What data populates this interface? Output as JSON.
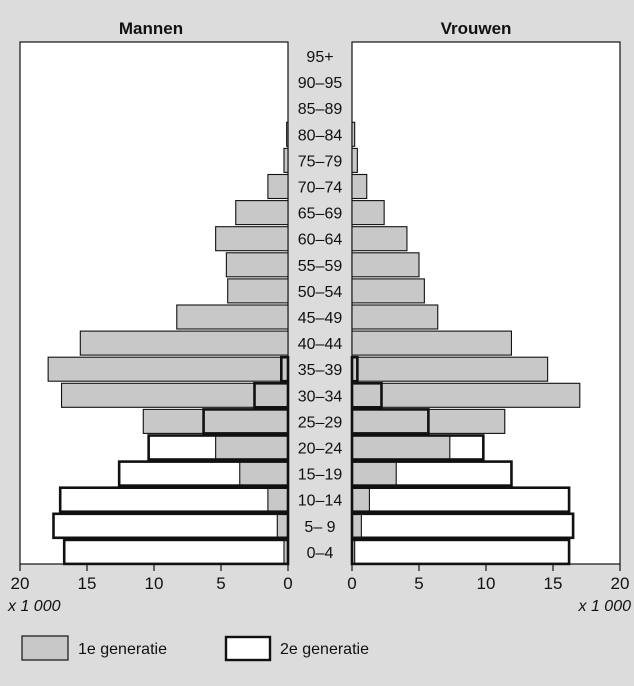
{
  "chart_data": {
    "type": "bar",
    "panels": {
      "left": {
        "title": "Mannen"
      },
      "right": {
        "title": "Vrouwen"
      }
    },
    "categories": [
      "95+",
      "90–95",
      "85–89",
      "80–84",
      "75–79",
      "70–74",
      "65–69",
      "60–64",
      "55–59",
      "50–54",
      "45–49",
      "40–44",
      "35–39",
      "30–34",
      "25–29",
      "20–24",
      "15–19",
      "10–14",
      "5– 9",
      "0–4"
    ],
    "series": [
      {
        "name": "1e generatie",
        "fill": "#c8c8c8",
        "men": [
          0,
          0,
          0,
          0.1,
          0.3,
          1.5,
          3.9,
          5.4,
          4.6,
          4.5,
          8.3,
          15.5,
          17.9,
          16.9,
          10.8,
          5.4,
          3.6,
          1.5,
          0.8,
          0.3
        ],
        "women": [
          0,
          0,
          0,
          0.2,
          0.4,
          1.1,
          2.4,
          4.1,
          5.0,
          5.4,
          6.4,
          11.9,
          14.6,
          17.0,
          11.4,
          7.3,
          3.3,
          1.3,
          0.7,
          0.2
        ]
      },
      {
        "name": "2e generatie",
        "fill": "#ffffff",
        "men": [
          0,
          0,
          0,
          0,
          0,
          0,
          0,
          0,
          0,
          0,
          0,
          0,
          0.5,
          2.5,
          6.3,
          10.4,
          12.6,
          17.0,
          17.5,
          16.7
        ],
        "women": [
          0,
          0,
          0,
          0,
          0,
          0,
          0,
          0,
          0,
          0,
          0,
          0,
          0.4,
          2.2,
          5.7,
          9.8,
          11.9,
          16.2,
          16.5,
          16.2
        ]
      }
    ],
    "xlim": [
      0,
      20
    ],
    "x_ticks": [
      "0",
      "5",
      "10",
      "15",
      "20"
    ],
    "x_unit": "x 1 000",
    "legend_position": "bottom-left"
  }
}
